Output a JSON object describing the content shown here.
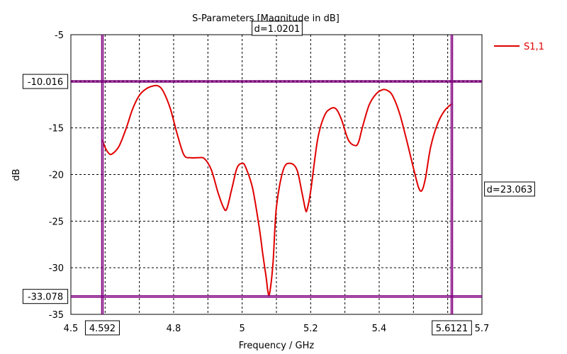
{
  "chart_data": {
    "type": "line",
    "title": "S-Parameters [Magnitude in dB]",
    "xlabel": "Frequency / GHz",
    "ylabel": "dB",
    "xlim": [
      4.5,
      5.7
    ],
    "ylim": [
      -35,
      -5
    ],
    "xticks": [
      4.5,
      4.8,
      5,
      5.2,
      5.4,
      5.7
    ],
    "xtick_labels": [
      "4.5",
      "4.8",
      "5",
      "5.2",
      "5.4",
      "5.7"
    ],
    "yticks": [
      -5,
      -15,
      -20,
      -25,
      -30,
      -35
    ],
    "ytick_labels": [
      "-5",
      "-15",
      "-20",
      "-25",
      "-30",
      "-35"
    ],
    "grid_x": [
      4.6,
      4.7,
      4.8,
      4.9,
      5.0,
      5.1,
      5.2,
      5.3,
      5.4,
      5.5,
      5.6
    ],
    "grid_y": [
      -10,
      -15,
      -20,
      -25,
      -30
    ],
    "grid": true,
    "legend_position": "top-right",
    "series": [
      {
        "name": "S1,1",
        "color": "#e00000",
        "x": [
          4.592,
          4.6,
          4.61,
          4.62,
          4.64,
          4.66,
          4.68,
          4.7,
          4.72,
          4.74,
          4.755,
          4.77,
          4.79,
          4.81,
          4.83,
          4.85,
          4.87,
          4.89,
          4.91,
          4.93,
          4.945,
          4.955,
          4.97,
          4.985,
          5.0,
          5.01,
          5.03,
          5.05,
          5.06,
          5.07,
          5.075,
          5.08,
          5.09,
          5.1,
          5.12,
          5.14,
          5.16,
          5.175,
          5.185,
          5.19,
          5.2,
          5.22,
          5.24,
          5.26,
          5.275,
          5.29,
          5.31,
          5.33,
          5.34,
          5.35,
          5.37,
          5.39,
          5.41,
          5.425,
          5.44,
          5.46,
          5.48,
          5.5,
          5.515,
          5.525,
          5.535,
          5.55,
          5.57,
          5.59,
          5.612
        ],
        "y": [
          -16.3,
          -17.1,
          -17.7,
          -17.8,
          -17.0,
          -15.2,
          -13.0,
          -11.5,
          -10.8,
          -10.5,
          -10.5,
          -11.1,
          -12.9,
          -15.6,
          -17.9,
          -18.2,
          -18.2,
          -18.3,
          -19.5,
          -22.0,
          -23.5,
          -23.7,
          -21.5,
          -19.3,
          -18.8,
          -19.2,
          -21.4,
          -25.7,
          -28.5,
          -31.0,
          -32.5,
          -32.8,
          -29.5,
          -23.5,
          -19.5,
          -18.8,
          -19.5,
          -22.0,
          -23.8,
          -23.7,
          -21.8,
          -16.3,
          -13.7,
          -12.9,
          -13.0,
          -14.1,
          -16.3,
          -16.9,
          -16.5,
          -15.1,
          -12.6,
          -11.4,
          -10.9,
          -11.0,
          -11.6,
          -13.5,
          -16.3,
          -19.3,
          -21.4,
          -21.7,
          -20.4,
          -17.1,
          -14.6,
          -13.2,
          -12.4
        ]
      }
    ],
    "markers": {
      "horizontal": [
        {
          "value": -10.016,
          "label": "-10.016"
        },
        {
          "value": -33.078,
          "label": "-33.078"
        }
      ],
      "vertical": [
        {
          "value": 4.592,
          "label": "4.592"
        },
        {
          "value": 5.6121,
          "label": "5.6121"
        }
      ],
      "delta_x_label": "d=1.0201",
      "delta_y_label": "d=23.063",
      "color": "#800080"
    }
  }
}
